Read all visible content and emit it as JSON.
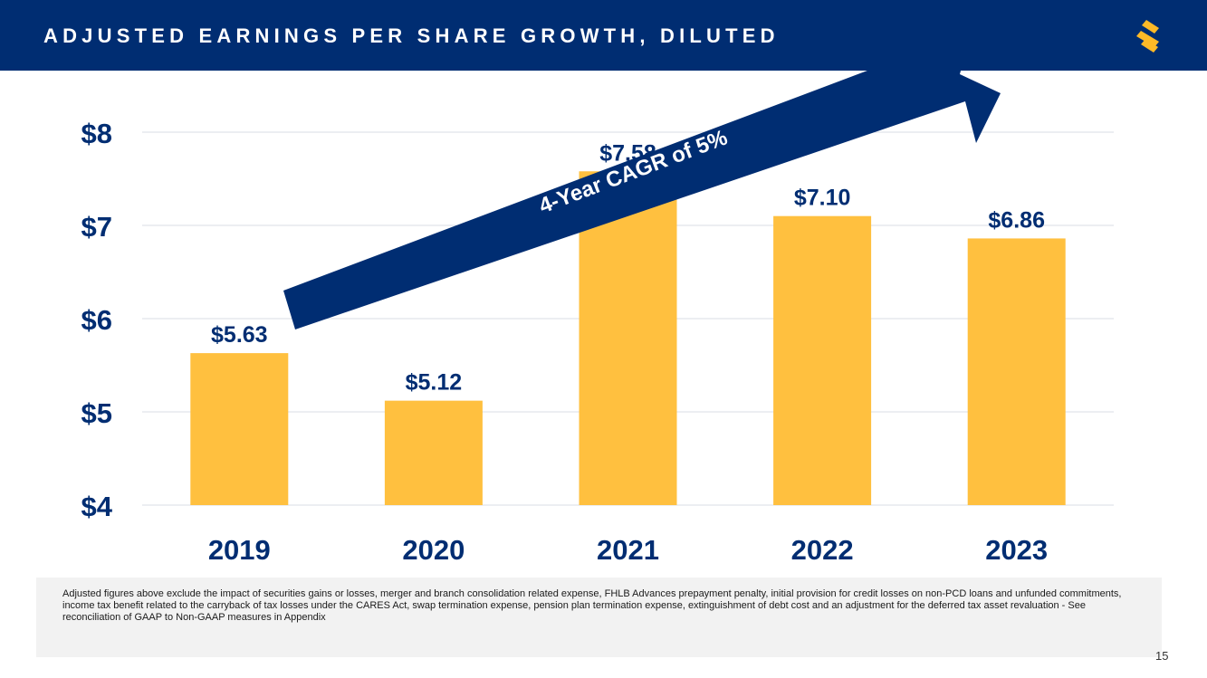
{
  "header": {
    "title": "ADJUSTED EARNINGS PER SHARE GROWTH, DILUTED",
    "background_color": "#002d72",
    "logo_icon": "s-logo-icon",
    "logo_color": "#fdb927"
  },
  "chart_data": {
    "type": "bar",
    "title": "Adjusted Earnings Per Share Growth, Diluted",
    "categories": [
      "2019",
      "2020",
      "2021",
      "2022",
      "2023"
    ],
    "values": [
      5.63,
      5.12,
      7.58,
      7.1,
      6.86
    ],
    "data_labels": [
      "$5.63",
      "$5.12",
      "$7.58",
      "$7.10",
      "$6.86"
    ],
    "y_ticks": [
      4,
      5,
      6,
      7,
      8
    ],
    "y_tick_labels": [
      "$4",
      "$5",
      "$6",
      "$7",
      "$8"
    ],
    "ylim": [
      4,
      8
    ],
    "xlabel": "",
    "ylabel": "",
    "grid": true,
    "bar_color": "#ffc03f",
    "text_color": "#002d72",
    "annotation": {
      "text": "4-Year CAGR of 5%",
      "shape": "arrow",
      "color": "#002d72",
      "text_color": "#ffffff"
    }
  },
  "footnote": {
    "text": "Adjusted figures above exclude the impact of securities gains or losses, merger and branch consolidation related expense, FHLB Advances prepayment penalty, initial provision for credit losses on non-PCD loans and unfunded commitments, income tax benefit related to the carryback of tax losses under the CARES Act, swap termination expense, pension plan termination expense, extinguishment of debt cost and an adjustment for the deferred tax asset revaluation - See reconciliation of GAAP to Non-GAAP measures in Appendix"
  },
  "page": {
    "number": "15"
  }
}
